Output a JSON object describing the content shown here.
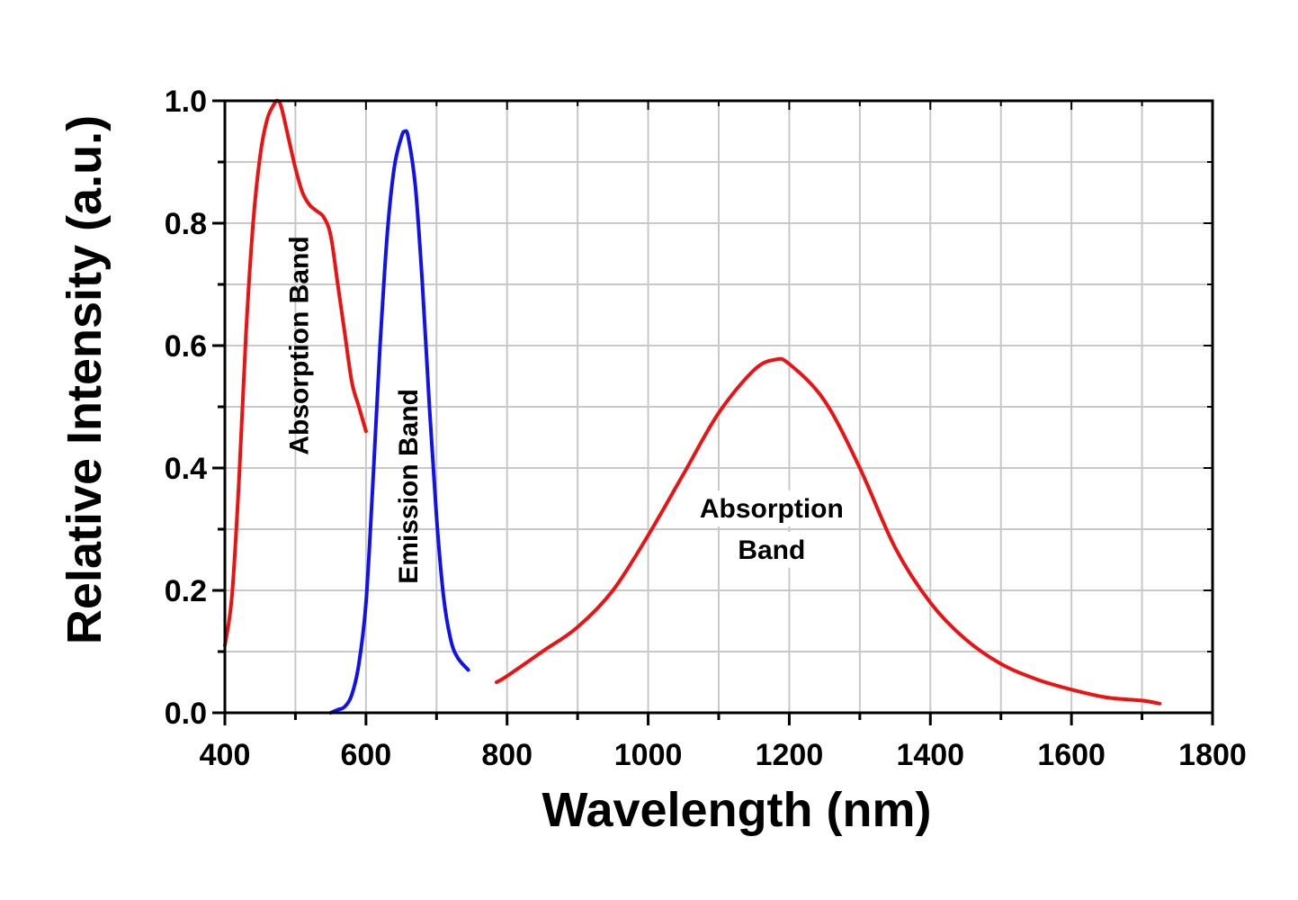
{
  "chart_data": {
    "type": "line",
    "title": "",
    "xlabel": "Wavelength (nm)",
    "ylabel": "Relative Intensity (a.u.)",
    "xlim": [
      400,
      1800
    ],
    "ylim": [
      0.0,
      1.0
    ],
    "xticks": [
      400,
      600,
      800,
      1000,
      1200,
      1400,
      1600,
      1800
    ],
    "yticks": [
      0.0,
      0.2,
      0.4,
      0.6,
      0.8,
      1.0
    ],
    "xtick_labels": [
      "400",
      "600",
      "800",
      "1000",
      "1200",
      "1400",
      "1600",
      "1800"
    ],
    "ytick_labels": [
      "0.0",
      "0.2",
      "0.4",
      "0.6",
      "0.8",
      "1.0"
    ],
    "grid": true,
    "legend": "none",
    "series": [
      {
        "color": "#ee1111",
        "x": [
          400,
          410,
          420,
          430,
          440,
          450,
          460,
          470,
          475,
          480,
          490,
          500,
          510,
          520,
          530,
          540,
          550,
          560,
          570,
          580,
          590,
          600
        ],
        "y": [
          0.11,
          0.19,
          0.38,
          0.62,
          0.8,
          0.91,
          0.97,
          0.995,
          1.0,
          0.99,
          0.94,
          0.89,
          0.85,
          0.83,
          0.82,
          0.81,
          0.78,
          0.7,
          0.62,
          0.54,
          0.5,
          0.46
        ]
      },
      {
        "color": "#1111ee",
        "x": [
          550,
          560,
          570,
          580,
          590,
          600,
          610,
          620,
          630,
          640,
          650,
          655,
          660,
          670,
          680,
          690,
          700,
          710,
          720,
          730,
          745
        ],
        "y": [
          0.0,
          0.005,
          0.01,
          0.03,
          0.08,
          0.18,
          0.38,
          0.6,
          0.78,
          0.89,
          0.94,
          0.95,
          0.94,
          0.86,
          0.7,
          0.5,
          0.32,
          0.19,
          0.12,
          0.09,
          0.07
        ]
      },
      {
        "color": "#ee1111",
        "x": [
          785,
          800,
          850,
          900,
          950,
          1000,
          1050,
          1100,
          1150,
          1180,
          1200,
          1250,
          1300,
          1350,
          1400,
          1450,
          1500,
          1550,
          1600,
          1650,
          1700,
          1725
        ],
        "y": [
          0.05,
          0.06,
          0.1,
          0.14,
          0.2,
          0.29,
          0.39,
          0.49,
          0.56,
          0.577,
          0.57,
          0.51,
          0.4,
          0.27,
          0.18,
          0.12,
          0.08,
          0.055,
          0.038,
          0.025,
          0.02,
          0.015
        ]
      }
    ],
    "annotations": [
      {
        "lines": [
          "Absorption Band"
        ],
        "x": 505,
        "y": 0.6,
        "rotate": -90
      },
      {
        "lines": [
          "Emission Band"
        ],
        "x": 660,
        "y": 0.37,
        "rotate": -90
      },
      {
        "lines": [
          "Absorption",
          "Band"
        ],
        "x": 1175,
        "y": 0.3,
        "rotate": 0
      }
    ]
  }
}
